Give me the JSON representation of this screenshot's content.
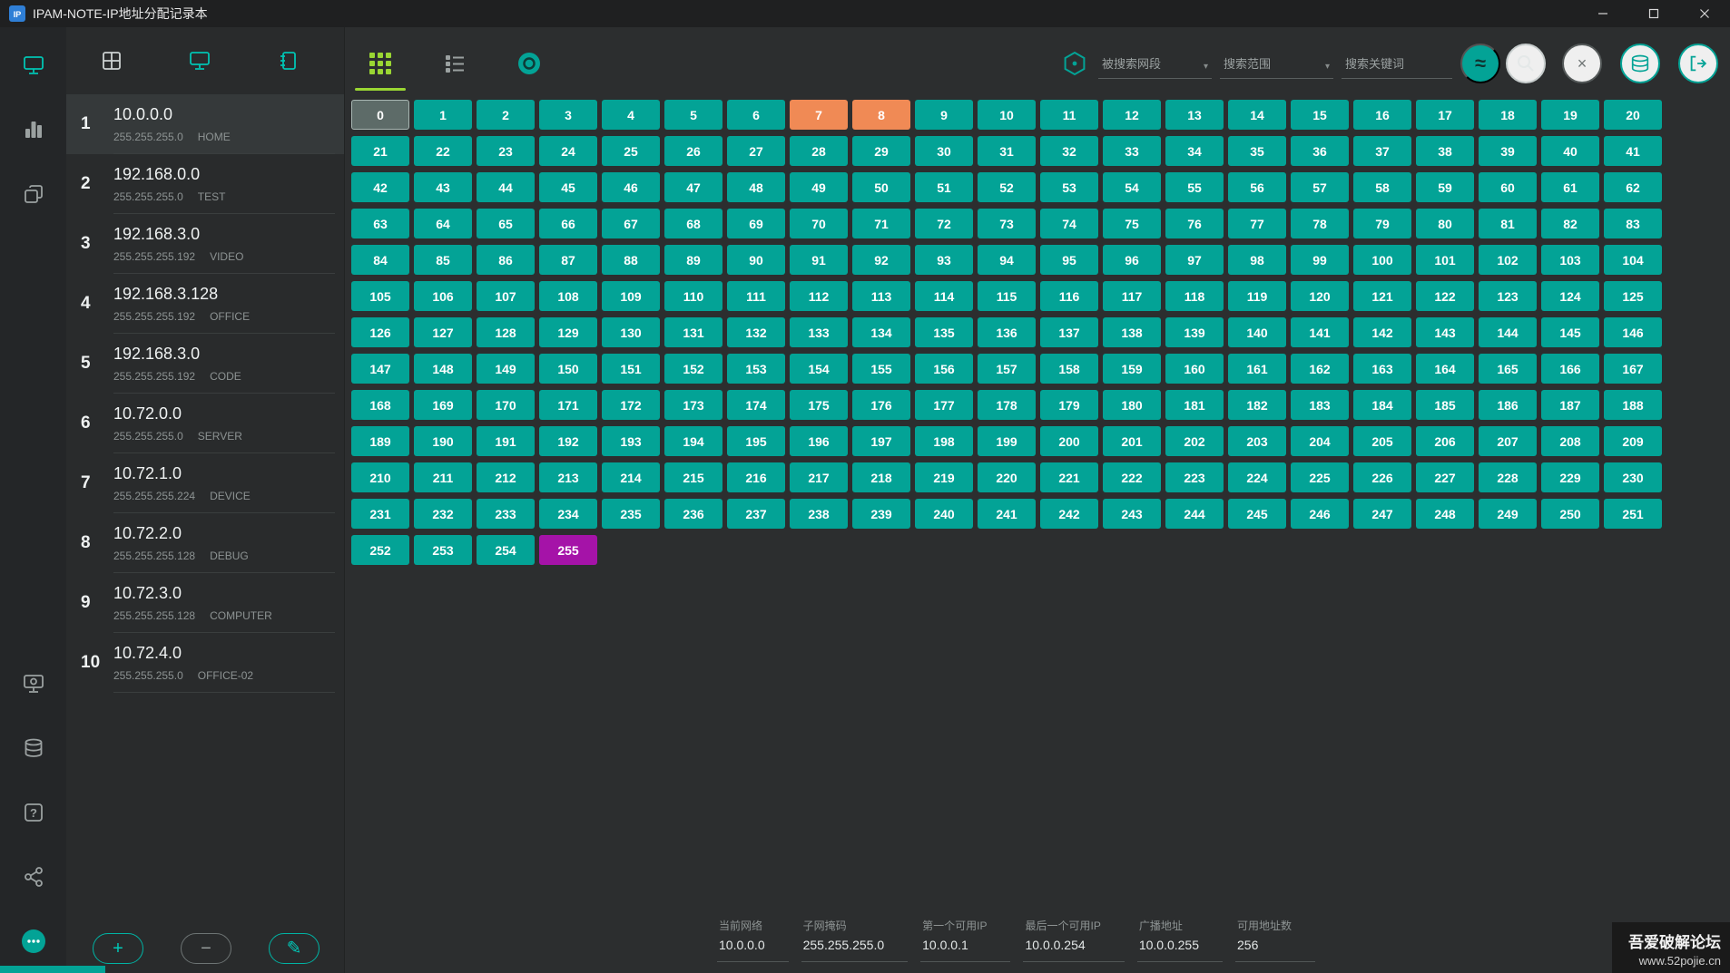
{
  "window": {
    "title": "IPAM-NOTE-IP地址分配记录本"
  },
  "sidebar": {
    "top_items": [
      "ip-management",
      "dashboard",
      "records"
    ],
    "bottom_items": [
      "devices",
      "database-sync",
      "help",
      "share",
      "about-chat"
    ],
    "active_item": "ip-management"
  },
  "network_panel": {
    "tabs": [
      "overview",
      "ip-list",
      "notebook"
    ],
    "items": [
      {
        "index": "1",
        "ip": "10.0.0.0",
        "mask": "255.255.255.0",
        "name": "HOME",
        "selected": true
      },
      {
        "index": "2",
        "ip": "192.168.0.0",
        "mask": "255.255.255.0",
        "name": "TEST",
        "selected": false
      },
      {
        "index": "3",
        "ip": "192.168.3.0",
        "mask": "255.255.255.192",
        "name": "VIDEO",
        "selected": false
      },
      {
        "index": "4",
        "ip": "192.168.3.128",
        "mask": "255.255.255.192",
        "name": "OFFICE",
        "selected": false
      },
      {
        "index": "5",
        "ip": "192.168.3.0",
        "mask": "255.255.255.192",
        "name": "CODE",
        "selected": false
      },
      {
        "index": "6",
        "ip": "10.72.0.0",
        "mask": "255.255.255.0",
        "name": "SERVER",
        "selected": false
      },
      {
        "index": "7",
        "ip": "10.72.1.0",
        "mask": "255.255.255.224",
        "name": "DEVICE",
        "selected": false
      },
      {
        "index": "8",
        "ip": "10.72.2.0",
        "mask": "255.255.255.128",
        "name": "DEBUG",
        "selected": false
      },
      {
        "index": "9",
        "ip": "10.72.3.0",
        "mask": "255.255.255.128",
        "name": "COMPUTER",
        "selected": false
      },
      {
        "index": "10",
        "ip": "10.72.4.0",
        "mask": "255.255.255.0",
        "name": "OFFICE-02",
        "selected": false
      }
    ],
    "actions": {
      "add": "+",
      "remove": "−",
      "edit": "✎"
    }
  },
  "toolbar": {
    "search_segment_placeholder": "被搜索网段",
    "search_scope_placeholder": "搜索范围",
    "search_keyword_placeholder": "搜索关键词",
    "caret": "▾",
    "approx_label": "≈",
    "clear_label": "×"
  },
  "grid": {
    "total": 256,
    "columns": 21,
    "current_cell": 0,
    "orange_cells": [
      7,
      8
    ],
    "purple_cells": [
      255
    ]
  },
  "status_bar": {
    "fields": [
      {
        "label": "当前网络",
        "value": "10.0.0.0"
      },
      {
        "label": "子网掩码",
        "value": "255.255.255.0"
      },
      {
        "label": "第一个可用IP",
        "value": "10.0.0.1"
      },
      {
        "label": "最后一个可用IP",
        "value": "10.0.0.254"
      },
      {
        "label": "广播地址",
        "value": "10.0.0.255"
      },
      {
        "label": "可用地址数",
        "value": "256"
      }
    ]
  },
  "watermark": {
    "line1": "吾爱破解论坛",
    "line2": "www.52pojie.cn"
  },
  "colors": {
    "teal": "#03a396",
    "orange": "#f08a55",
    "purple": "#a513a8",
    "current_cell_gray": "#5d6b68",
    "accent_green": "#9ad633"
  }
}
